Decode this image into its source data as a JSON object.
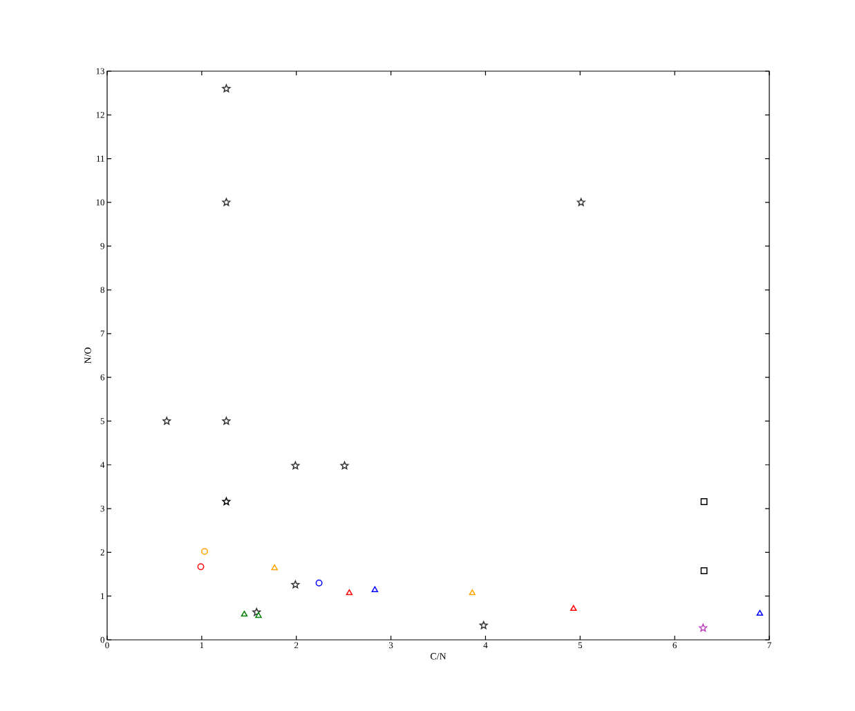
{
  "chart_data": {
    "type": "scatter",
    "xlabel": "C/N",
    "ylabel": "N/O",
    "xlim": [
      0,
      7
    ],
    "ylim": [
      0,
      13
    ],
    "xticks": [
      0,
      1,
      2,
      3,
      4,
      5,
      6,
      7
    ],
    "yticks": [
      0,
      1,
      2,
      3,
      4,
      5,
      6,
      7,
      8,
      9,
      10,
      11,
      12,
      13
    ],
    "grid": false,
    "legend": false,
    "series": [
      {
        "color": "#333333",
        "marker": "star",
        "x": [
          0.63,
          1.26,
          1.26,
          1.26,
          1.99,
          2.51,
          5.01,
          1.99
        ],
        "values": [
          5.0,
          12.6,
          10.0,
          5.0,
          3.98,
          3.98,
          10.0,
          1.26
        ]
      },
      {
        "color": "#000000",
        "marker": "star",
        "x": [
          1.26
        ],
        "values": [
          3.16
        ]
      },
      {
        "color": "#333333",
        "marker": "star",
        "x": [
          1.58,
          3.98
        ],
        "values": [
          0.63,
          0.33
        ]
      },
      {
        "color": "#bf3fbf",
        "marker": "star",
        "x": [
          6.3
        ],
        "values": [
          0.27
        ]
      },
      {
        "color": "#000000",
        "marker": "square",
        "x": [
          6.31,
          6.31
        ],
        "values": [
          3.16,
          1.58
        ]
      },
      {
        "color": "#ff0000",
        "marker": "circle",
        "x": [
          0.99
        ],
        "values": [
          1.67
        ]
      },
      {
        "color": "#ffa500",
        "marker": "circle",
        "x": [
          1.03
        ],
        "values": [
          2.02
        ]
      },
      {
        "color": "#0000ff",
        "marker": "circle",
        "x": [
          2.24
        ],
        "values": [
          1.3
        ]
      },
      {
        "color": "#008000",
        "marker": "triangle",
        "x": [
          1.45
        ],
        "values": [
          0.58
        ]
      },
      {
        "color": "#ffa500",
        "marker": "triangle",
        "x": [
          1.77
        ],
        "values": [
          1.64
        ]
      },
      {
        "color": "#ff0000",
        "marker": "triangle",
        "x": [
          2.56
        ],
        "values": [
          1.07
        ]
      },
      {
        "color": "#0000ff",
        "marker": "triangle",
        "x": [
          2.83
        ],
        "values": [
          1.14
        ]
      },
      {
        "color": "#008000",
        "marker": "triangle",
        "x": [
          1.6
        ],
        "values": [
          0.55
        ]
      },
      {
        "color": "#ffa500",
        "marker": "triangle",
        "x": [
          3.86
        ],
        "values": [
          1.07
        ]
      },
      {
        "color": "#ff0000",
        "marker": "triangle",
        "x": [
          4.93
        ],
        "values": [
          0.71
        ]
      },
      {
        "color": "#0000ff",
        "marker": "triangle",
        "x": [
          6.9
        ],
        "values": [
          0.6
        ]
      }
    ]
  }
}
